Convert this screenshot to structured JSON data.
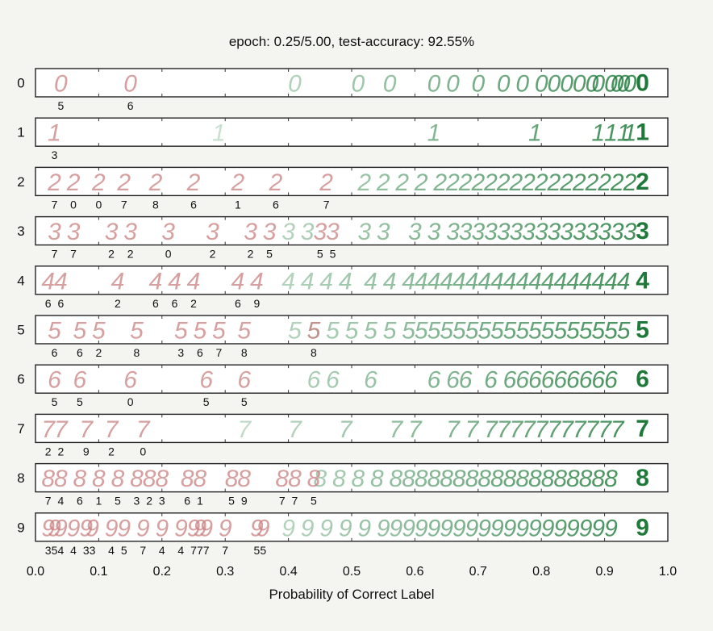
{
  "chart_data": {
    "type": "scatter",
    "title": "epoch: 0.25/5.00, test-accuracy: 92.55%",
    "xlabel": "Probability of Correct Label",
    "ylabel": "",
    "xlim": [
      0.0,
      1.0
    ],
    "x_ticks": [
      "0.0",
      "0.1",
      "0.2",
      "0.3",
      "0.4",
      "0.5",
      "0.6",
      "0.7",
      "0.8",
      "0.9",
      "1.0"
    ],
    "grid": false,
    "colors": {
      "correct": "#1f7a3a",
      "misclassified": "#c98080",
      "background": "#f4f4f0"
    },
    "rows": [
      {
        "label": "0",
        "correct_digit": "0",
        "misclassified": [
          {
            "x": 0.04,
            "predicted": "5"
          },
          {
            "x": 0.15,
            "predicted": "6"
          }
        ],
        "correct": [
          0.41,
          0.51,
          0.56,
          0.63,
          0.66,
          0.7,
          0.74,
          0.77,
          0.8,
          0.82,
          0.84,
          0.86,
          0.88,
          0.89,
          0.91,
          0.92,
          0.93,
          0.94,
          0.96
        ]
      },
      {
        "label": "1",
        "correct_digit": "1",
        "misclassified": [
          {
            "x": 0.03,
            "predicted": "3"
          }
        ],
        "correct": [
          0.29,
          0.63,
          0.79,
          0.89,
          0.91,
          0.93,
          0.94,
          0.96
        ]
      },
      {
        "label": "2",
        "correct_digit": "2",
        "misclassified": [
          {
            "x": 0.03,
            "predicted": "7"
          },
          {
            "x": 0.06,
            "predicted": "0"
          },
          {
            "x": 0.1,
            "predicted": "0"
          },
          {
            "x": 0.14,
            "predicted": "7"
          },
          {
            "x": 0.19,
            "predicted": "8"
          },
          {
            "x": 0.25,
            "predicted": "6"
          },
          {
            "x": 0.32,
            "predicted": "1"
          },
          {
            "x": 0.38,
            "predicted": "6"
          },
          {
            "x": 0.46,
            "predicted": "7"
          }
        ],
        "correct": [
          0.52,
          0.55,
          0.58,
          0.61,
          0.64,
          0.66,
          0.68,
          0.7,
          0.72,
          0.74,
          0.76,
          0.78,
          0.8,
          0.82,
          0.84,
          0.86,
          0.88,
          0.9,
          0.92,
          0.94,
          0.96
        ]
      },
      {
        "label": "3",
        "correct_digit": "3",
        "misclassified": [
          {
            "x": 0.03,
            "predicted": "7"
          },
          {
            "x": 0.06,
            "predicted": "7"
          },
          {
            "x": 0.12,
            "predicted": "2"
          },
          {
            "x": 0.15,
            "predicted": "2"
          },
          {
            "x": 0.21,
            "predicted": "0"
          },
          {
            "x": 0.28,
            "predicted": "2"
          },
          {
            "x": 0.34,
            "predicted": "2"
          },
          {
            "x": 0.37,
            "predicted": "5"
          },
          {
            "x": 0.45,
            "predicted": "5"
          },
          {
            "x": 0.47,
            "predicted": "5"
          }
        ],
        "correct": [
          0.4,
          0.43,
          0.52,
          0.55,
          0.6,
          0.63,
          0.66,
          0.68,
          0.7,
          0.72,
          0.74,
          0.76,
          0.78,
          0.8,
          0.82,
          0.84,
          0.86,
          0.88,
          0.9,
          0.92,
          0.94,
          0.96
        ]
      },
      {
        "label": "4",
        "correct_digit": "4",
        "misclassified": [
          {
            "x": 0.02,
            "predicted": "6"
          },
          {
            "x": 0.04,
            "predicted": "6"
          },
          {
            "x": 0.13,
            "predicted": "2"
          },
          {
            "x": 0.19,
            "predicted": "6"
          },
          {
            "x": 0.22,
            "predicted": "6"
          },
          {
            "x": 0.25,
            "predicted": "2"
          },
          {
            "x": 0.32,
            "predicted": "6"
          },
          {
            "x": 0.35,
            "predicted": "9"
          }
        ],
        "correct": [
          0.4,
          0.43,
          0.46,
          0.49,
          0.53,
          0.56,
          0.59,
          0.61,
          0.63,
          0.65,
          0.67,
          0.69,
          0.71,
          0.73,
          0.75,
          0.77,
          0.79,
          0.81,
          0.83,
          0.85,
          0.87,
          0.89,
          0.91,
          0.93,
          0.96
        ]
      },
      {
        "label": "5",
        "correct_digit": "5",
        "misclassified": [
          {
            "x": 0.03,
            "predicted": "6"
          },
          {
            "x": 0.07,
            "predicted": "6"
          },
          {
            "x": 0.1,
            "predicted": "2"
          },
          {
            "x": 0.16,
            "predicted": "8"
          },
          {
            "x": 0.23,
            "predicted": "3"
          },
          {
            "x": 0.26,
            "predicted": "6"
          },
          {
            "x": 0.29,
            "predicted": "7"
          },
          {
            "x": 0.33,
            "predicted": "8"
          },
          {
            "x": 0.44,
            "predicted": "8"
          }
        ],
        "correct": [
          0.41,
          0.44,
          0.47,
          0.5,
          0.53,
          0.56,
          0.59,
          0.61,
          0.63,
          0.65,
          0.67,
          0.69,
          0.71,
          0.73,
          0.75,
          0.77,
          0.79,
          0.81,
          0.83,
          0.85,
          0.87,
          0.89,
          0.91,
          0.93,
          0.96
        ]
      },
      {
        "label": "6",
        "correct_digit": "6",
        "misclassified": [
          {
            "x": 0.03,
            "predicted": "5"
          },
          {
            "x": 0.07,
            "predicted": "5"
          },
          {
            "x": 0.15,
            "predicted": "0"
          },
          {
            "x": 0.27,
            "predicted": "5"
          },
          {
            "x": 0.33,
            "predicted": "5"
          }
        ],
        "correct": [
          0.44,
          0.47,
          0.53,
          0.63,
          0.66,
          0.68,
          0.72,
          0.75,
          0.77,
          0.79,
          0.81,
          0.83,
          0.85,
          0.87,
          0.89,
          0.91,
          0.96
        ]
      },
      {
        "label": "7",
        "correct_digit": "7",
        "misclassified": [
          {
            "x": 0.02,
            "predicted": "2"
          },
          {
            "x": 0.04,
            "predicted": "2"
          },
          {
            "x": 0.08,
            "predicted": "9"
          },
          {
            "x": 0.12,
            "predicted": "2"
          },
          {
            "x": 0.17,
            "predicted": "0"
          }
        ],
        "correct": [
          0.33,
          0.41,
          0.49,
          0.57,
          0.6,
          0.66,
          0.69,
          0.72,
          0.74,
          0.76,
          0.78,
          0.8,
          0.82,
          0.84,
          0.86,
          0.88,
          0.9,
          0.92,
          0.96
        ]
      },
      {
        "label": "8",
        "correct_digit": "8",
        "misclassified": [
          {
            "x": 0.02,
            "predicted": "7"
          },
          {
            "x": 0.04,
            "predicted": "4"
          },
          {
            "x": 0.07,
            "predicted": "6"
          },
          {
            "x": 0.1,
            "predicted": "1"
          },
          {
            "x": 0.13,
            "predicted": "5"
          },
          {
            "x": 0.16,
            "predicted": "3"
          },
          {
            "x": 0.18,
            "predicted": "2"
          },
          {
            "x": 0.2,
            "predicted": "3"
          },
          {
            "x": 0.24,
            "predicted": "6"
          },
          {
            "x": 0.26,
            "predicted": "1"
          },
          {
            "x": 0.31,
            "predicted": "5"
          },
          {
            "x": 0.33,
            "predicted": "9"
          },
          {
            "x": 0.39,
            "predicted": "7"
          },
          {
            "x": 0.41,
            "predicted": "7"
          },
          {
            "x": 0.44,
            "predicted": "5"
          }
        ],
        "correct": [
          0.45,
          0.48,
          0.51,
          0.54,
          0.57,
          0.59,
          0.61,
          0.63,
          0.65,
          0.67,
          0.69,
          0.71,
          0.73,
          0.75,
          0.77,
          0.79,
          0.81,
          0.83,
          0.85,
          0.87,
          0.89,
          0.91,
          0.96
        ]
      },
      {
        "label": "9",
        "correct_digit": "9",
        "misclassified": [
          {
            "x": 0.02,
            "predicted": "3"
          },
          {
            "x": 0.03,
            "predicted": "5"
          },
          {
            "x": 0.04,
            "predicted": "4"
          },
          {
            "x": 0.06,
            "predicted": "4"
          },
          {
            "x": 0.08,
            "predicted": "3"
          },
          {
            "x": 0.09,
            "predicted": "3"
          },
          {
            "x": 0.12,
            "predicted": "4"
          },
          {
            "x": 0.14,
            "predicted": "5"
          },
          {
            "x": 0.17,
            "predicted": "7"
          },
          {
            "x": 0.2,
            "predicted": "4"
          },
          {
            "x": 0.23,
            "predicted": "4"
          },
          {
            "x": 0.25,
            "predicted": "7"
          },
          {
            "x": 0.26,
            "predicted": "7"
          },
          {
            "x": 0.27,
            "predicted": "7"
          },
          {
            "x": 0.3,
            "predicted": "7"
          },
          {
            "x": 0.35,
            "predicted": "5"
          },
          {
            "x": 0.36,
            "predicted": "5"
          }
        ],
        "correct": [
          0.4,
          0.43,
          0.46,
          0.49,
          0.52,
          0.55,
          0.57,
          0.59,
          0.61,
          0.63,
          0.65,
          0.67,
          0.69,
          0.71,
          0.73,
          0.75,
          0.77,
          0.79,
          0.81,
          0.83,
          0.85,
          0.87,
          0.89,
          0.91,
          0.96
        ]
      }
    ]
  }
}
